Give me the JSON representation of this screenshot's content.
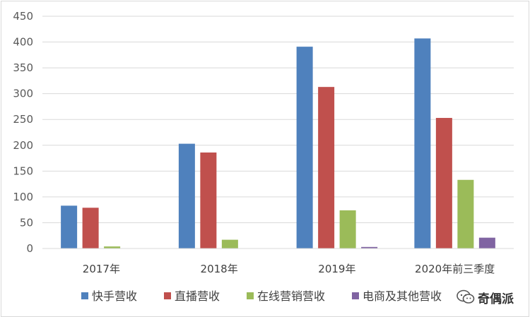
{
  "chart_data": {
    "type": "bar",
    "categories": [
      "2017年",
      "2018年",
      "2019年",
      "2020年前三季度"
    ],
    "series": [
      {
        "name": "快手营收",
        "color": "#4F81BD",
        "values": [
          83,
          203,
          391,
          407
        ]
      },
      {
        "name": "直播营收",
        "color": "#C0504D",
        "values": [
          79,
          186,
          313,
          253
        ]
      },
      {
        "name": "在线营销营收",
        "color": "#9BBB59",
        "values": [
          4,
          17,
          74,
          133
        ]
      },
      {
        "name": "电商及其他营收",
        "color": "#8064A2",
        "values": [
          0,
          0,
          3,
          21
        ]
      }
    ],
    "yticks": [
      0,
      50,
      100,
      150,
      200,
      250,
      300,
      350,
      400,
      450
    ],
    "ylim": [
      0,
      450
    ],
    "grid": true,
    "legend_position": "bottom",
    "title": "",
    "xlabel": "",
    "ylabel": ""
  },
  "watermark": {
    "text": "奇偶派",
    "icon": "wechat-icon"
  }
}
